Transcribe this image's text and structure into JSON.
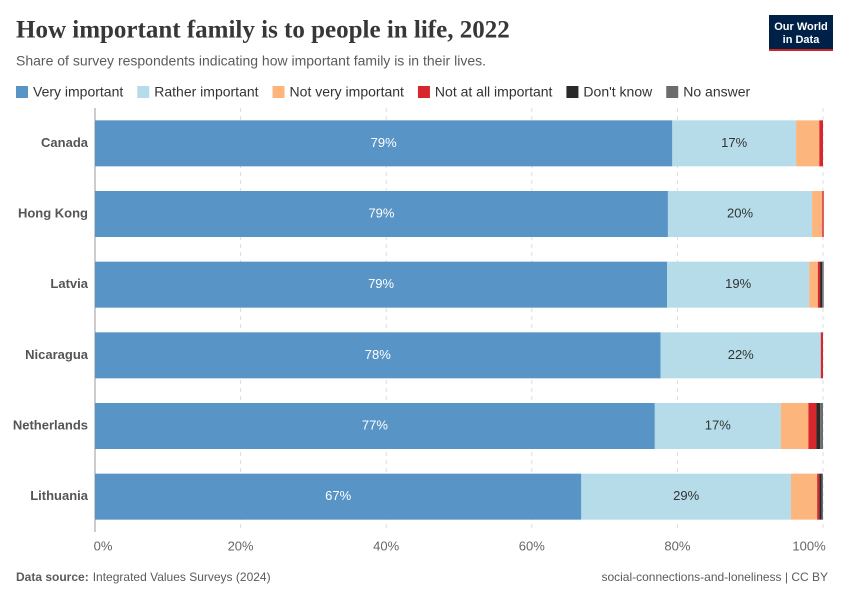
{
  "chart_data": {
    "type": "stacked-bar-horizontal",
    "title": "How important family is to people in life, 2022",
    "subtitle": "Share of survey respondents indicating how important family is in their lives.",
    "logo": [
      "Our World",
      "in Data"
    ],
    "source_label": "Data source:",
    "source": "Integrated Values Surveys (2024)",
    "footer_right": "social-connections-and-loneliness | CC BY",
    "categories": [
      "Canada",
      "Hong Kong",
      "Latvia",
      "Nicaragua",
      "Netherlands",
      "Lithuania"
    ],
    "series": [
      {
        "name": "Very important",
        "color": "#5894c6",
        "values": [
          79.3,
          78.7,
          78.6,
          77.7,
          76.9,
          66.8
        ],
        "value_labels": [
          "79%",
          "79%",
          "79%",
          "78%",
          "77%",
          "67%"
        ]
      },
      {
        "name": "Rather important",
        "color": "#b6dce9",
        "values": [
          17.0,
          19.8,
          19.5,
          22.0,
          17.3,
          28.8
        ],
        "value_labels": [
          "17%",
          "20%",
          "19%",
          "22%",
          "17%",
          "29%"
        ]
      },
      {
        "name": "Not very important",
        "color": "#fcb57c",
        "values": [
          3.2,
          1.4,
          1.2,
          0,
          3.8,
          3.6
        ]
      },
      {
        "name": "Not at all important",
        "color": "#d7262c",
        "values": [
          0.5,
          0.2,
          0.3,
          0.3,
          1.1,
          0.3
        ]
      },
      {
        "name": "Don't know",
        "color": "#2a2a2a",
        "values": [
          0,
          0,
          0.3,
          0,
          0.5,
          0.3
        ]
      },
      {
        "name": "No answer",
        "color": "#6c6c6c",
        "values": [
          0,
          0,
          0.2,
          0,
          0.4,
          0.2
        ]
      }
    ],
    "xlim": [
      0,
      100
    ],
    "xticks": [
      {
        "value": 0,
        "label": "0%"
      },
      {
        "value": 20,
        "label": "20%"
      },
      {
        "value": 40,
        "label": "40%"
      },
      {
        "value": 60,
        "label": "60%"
      },
      {
        "value": 80,
        "label": "80%"
      },
      {
        "value": 100,
        "label": "100%"
      }
    ],
    "grid": true
  }
}
